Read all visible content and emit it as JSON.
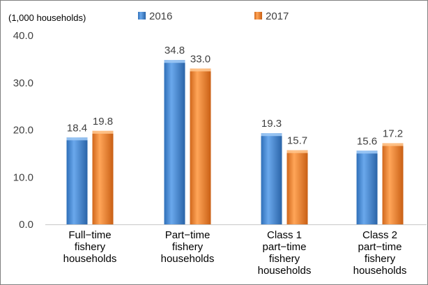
{
  "chart_data": {
    "type": "bar",
    "unit_label": "(1,000 households)",
    "categories": [
      [
        "Full−time",
        "fishery",
        "households"
      ],
      [
        "Part−time",
        "fishery",
        "households"
      ],
      [
        "Class 1",
        "part−time",
        "fishery",
        "households"
      ],
      [
        "Class 2",
        "part−time",
        "fishery",
        "households"
      ]
    ],
    "series": [
      {
        "name": "2016",
        "values": [
          18.4,
          34.8,
          19.3,
          15.6
        ],
        "labels": [
          "18.4",
          "34.8",
          "19.3",
          "15.6"
        ],
        "color": "#4a8fd8"
      },
      {
        "name": "2017",
        "values": [
          19.8,
          33.0,
          15.7,
          17.2
        ],
        "labels": [
          "19.8",
          "33.0",
          "15.7",
          "17.2"
        ],
        "color": "#f08a2e"
      }
    ],
    "yticks": [
      {
        "value": 0,
        "label": "0.0"
      },
      {
        "value": 10,
        "label": "10.0"
      },
      {
        "value": 20,
        "label": "20.0"
      },
      {
        "value": 30,
        "label": "30.0"
      },
      {
        "value": 40,
        "label": "40.0"
      }
    ],
    "ylim": [
      0,
      40
    ],
    "legend_position": "top",
    "grid": false
  }
}
